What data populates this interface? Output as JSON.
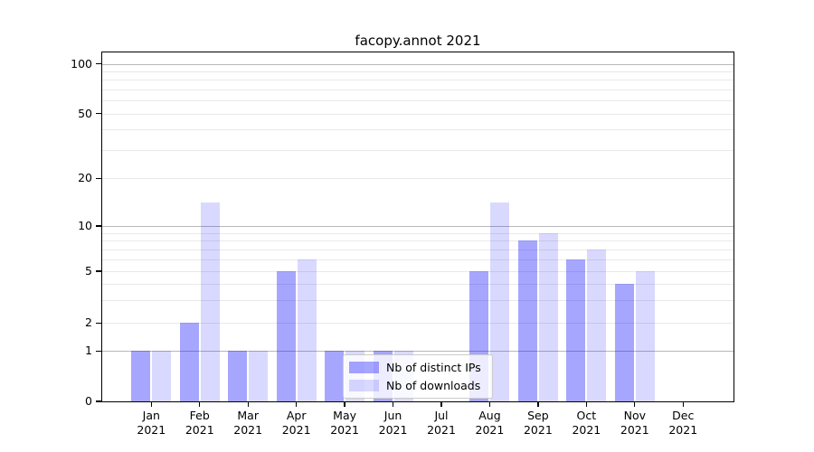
{
  "chart_data": {
    "type": "bar",
    "title": "facopy.annot 2021",
    "categories": [
      "Jan 2021",
      "Feb 2021",
      "Mar 2021",
      "Apr 2021",
      "May 2021",
      "Jun 2021",
      "Jul 2021",
      "Aug 2021",
      "Sep 2021",
      "Oct 2021",
      "Nov 2021",
      "Dec 2021"
    ],
    "series": [
      {
        "name": "Nb of distinct IPs",
        "values": [
          1,
          2,
          1,
          5,
          1,
          1,
          0,
          5,
          8,
          6,
          4,
          0
        ]
      },
      {
        "name": "Nb of downloads",
        "values": [
          1,
          14,
          1,
          6,
          1,
          1,
          0,
          14,
          9,
          7,
          5,
          0
        ]
      }
    ],
    "yscale": "symlog",
    "ytick_values": [
      0,
      1,
      2,
      5,
      10,
      20,
      50,
      100
    ],
    "ytick_labels": [
      "0",
      "1",
      "2",
      "5",
      "10",
      "20",
      "50",
      "100"
    ],
    "ylim": [
      0,
      110
    ],
    "grid": true,
    "legend_position": "lower center"
  },
  "legend": {
    "items": [
      {
        "label": "Nb of distinct IPs",
        "series_index": 0
      },
      {
        "label": "Nb of downloads",
        "series_index": 1
      }
    ]
  },
  "colors": {
    "bar_base": "#0000ff",
    "bar_alpha_ips": "0.35",
    "bar_alpha_downloads": "0.15",
    "grid_major": "#b8b8b8",
    "grid_minor": "#e9e9e9",
    "axis": "#000000",
    "legend_border": "#cccccc",
    "text": "#000000"
  }
}
